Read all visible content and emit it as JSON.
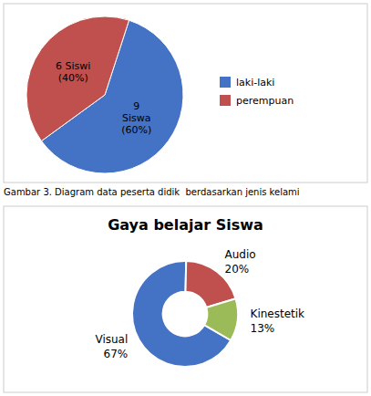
{
  "chart_data": [
    {
      "type": "pie",
      "categories": [
        "laki-laki",
        "perempuan"
      ],
      "values": [
        60,
        40
      ],
      "value_labels": [
        "9\nSiswa\n(60%)",
        "6 Siswi\n(40%)"
      ],
      "colors": [
        "#4472C4",
        "#C0504D"
      ],
      "data_labels": true,
      "legend": "right",
      "annotations": [
        "Gambar 3. Diagram data peserta didik  berdasarkan jenis kelami"
      ]
    },
    {
      "type": "donut",
      "title": "Gaya belajar Siswa",
      "categories": [
        "Visual",
        "Audio",
        "Kinestetik"
      ],
      "values": [
        67,
        20,
        13
      ],
      "value_labels": [
        "67%",
        "20%",
        "13%"
      ],
      "colors": [
        "#4472C4",
        "#C0504D",
        "#9BBB59"
      ],
      "data_labels": true
    }
  ]
}
